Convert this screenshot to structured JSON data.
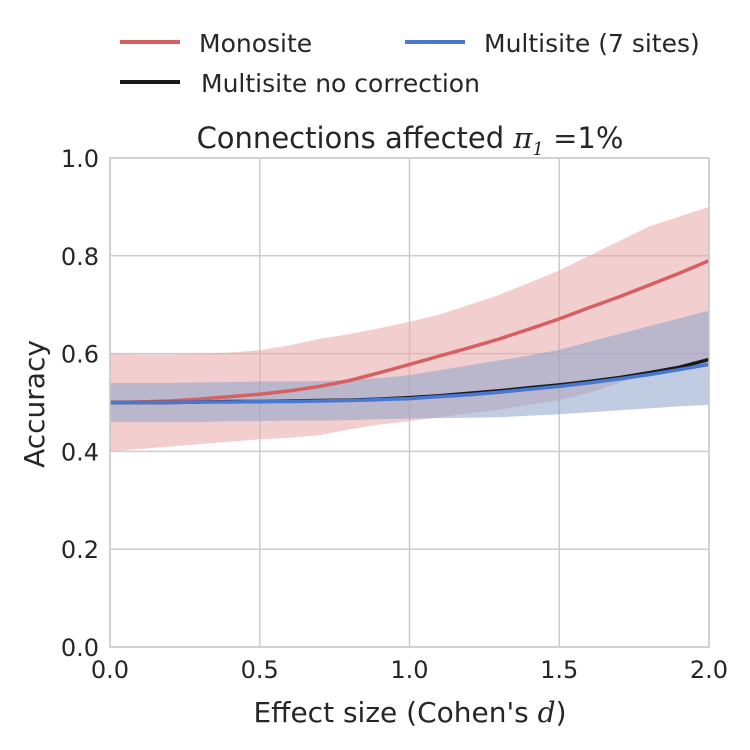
{
  "chart_data": {
    "type": "line",
    "title_prefix": "Connections affected ",
    "title_math_symbol": "π",
    "title_math_subscript": "1",
    "title_math_equals": " =",
    "title_suffix": "1%",
    "xlabel_prefix": "Effect size (Cohen's ",
    "xlabel_math": "d",
    "xlabel_suffix": ")",
    "ylabel": "Accuracy",
    "xlim": [
      0.0,
      2.0
    ],
    "ylim": [
      0.0,
      1.0
    ],
    "xticks": [
      0.0,
      0.5,
      1.0,
      1.5,
      2.0
    ],
    "yticks": [
      0.0,
      0.2,
      0.4,
      0.6,
      0.8,
      1.0
    ],
    "xtick_labels": [
      "0.0",
      "0.5",
      "1.0",
      "1.5",
      "2.0"
    ],
    "ytick_labels": [
      "0.0",
      "0.2",
      "0.4",
      "0.6",
      "0.8",
      "1.0"
    ],
    "grid": true,
    "legend_position": "top, above plot, two columns",
    "x": [
      0.0,
      0.1,
      0.2,
      0.3,
      0.4,
      0.5,
      0.6,
      0.7,
      0.8,
      0.9,
      1.0,
      1.1,
      1.2,
      1.3,
      1.4,
      1.5,
      1.6,
      1.7,
      1.8,
      1.9,
      2.0
    ],
    "series": [
      {
        "name": "Monosite",
        "color": "#d65f5f",
        "band_color": "#e8a6a6",
        "values": [
          0.5,
          0.501,
          0.503,
          0.507,
          0.512,
          0.517,
          0.524,
          0.533,
          0.545,
          0.561,
          0.578,
          0.595,
          0.612,
          0.63,
          0.65,
          0.671,
          0.694,
          0.716,
          0.74,
          0.764,
          0.79
        ],
        "lower": [
          0.4,
          0.405,
          0.41,
          0.415,
          0.42,
          0.425,
          0.428,
          0.433,
          0.445,
          0.455,
          0.462,
          0.47,
          0.478,
          0.485,
          0.495,
          0.505,
          0.52,
          0.54,
          0.56,
          0.57,
          0.58
        ],
        "upper": [
          0.6,
          0.598,
          0.598,
          0.6,
          0.602,
          0.607,
          0.617,
          0.63,
          0.64,
          0.652,
          0.665,
          0.68,
          0.7,
          0.72,
          0.745,
          0.77,
          0.8,
          0.83,
          0.86,
          0.88,
          0.9
        ]
      },
      {
        "name": "Multisite (7 sites)",
        "color": "#4878cf",
        "band_color": "#8ca2c8",
        "values": [
          0.5,
          0.5,
          0.5,
          0.501,
          0.501,
          0.502,
          0.502,
          0.503,
          0.504,
          0.506,
          0.508,
          0.512,
          0.516,
          0.521,
          0.527,
          0.533,
          0.54,
          0.548,
          0.557,
          0.567,
          0.578
        ],
        "lower": [
          0.46,
          0.46,
          0.46,
          0.46,
          0.462,
          0.462,
          0.463,
          0.463,
          0.464,
          0.466,
          0.467,
          0.468,
          0.469,
          0.47,
          0.473,
          0.476,
          0.48,
          0.484,
          0.488,
          0.492,
          0.495
        ],
        "upper": [
          0.54,
          0.54,
          0.54,
          0.541,
          0.542,
          0.543,
          0.543,
          0.544,
          0.546,
          0.55,
          0.556,
          0.566,
          0.576,
          0.586,
          0.596,
          0.608,
          0.624,
          0.64,
          0.656,
          0.672,
          0.688
        ]
      },
      {
        "name": "Multisite no correction",
        "color": "#1a1a1a",
        "values": [
          0.5,
          0.5,
          0.5,
          0.501,
          0.502,
          0.502,
          0.503,
          0.504,
          0.505,
          0.507,
          0.51,
          0.514,
          0.519,
          0.524,
          0.53,
          0.536,
          0.543,
          0.551,
          0.561,
          0.572,
          0.588
        ]
      }
    ]
  },
  "legend": {
    "row1_left": "Monosite",
    "row1_right": "Multisite (7 sites)",
    "row2_left": "Multisite no correction"
  }
}
